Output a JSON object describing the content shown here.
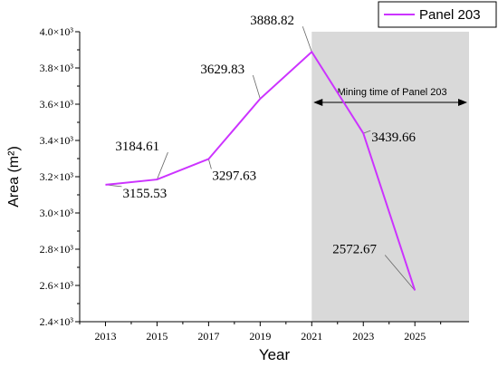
{
  "chart_data": {
    "type": "line",
    "xlabel": "Year",
    "ylabel": "Area (m²)",
    "x_ticks": [
      "2013",
      "2015",
      "2017",
      "2019",
      "2021",
      "2023",
      "2025"
    ],
    "y_ticks": [
      "2.4×10³",
      "2.6×10³",
      "2.8×10³",
      "3.0×10³",
      "3.2×10³",
      "3.4×10³",
      "3.6×10³",
      "3.8×10³",
      "4.0×10³"
    ],
    "xlim": [
      2012,
      2027
    ],
    "ylim": [
      2400,
      4000
    ],
    "series": [
      {
        "name": "Panel 203",
        "color": "#CC33FF",
        "x": [
          2013,
          2015,
          2017,
          2019,
          2021,
          2023,
          2025
        ],
        "y": [
          3155.53,
          3184.61,
          3297.63,
          3629.83,
          3888.82,
          3439.66,
          2572.67
        ]
      }
    ],
    "data_labels": [
      "3155.53",
      "3184.61",
      "3297.63",
      "3629.83",
      "3888.82",
      "3439.66",
      "2572.67"
    ],
    "shaded_region": {
      "x_range": [
        2021,
        2027
      ],
      "color": "#D9D9D9",
      "annotation": "Mining time of Panel 203"
    },
    "legend_placement": "top-right",
    "grid": false
  }
}
